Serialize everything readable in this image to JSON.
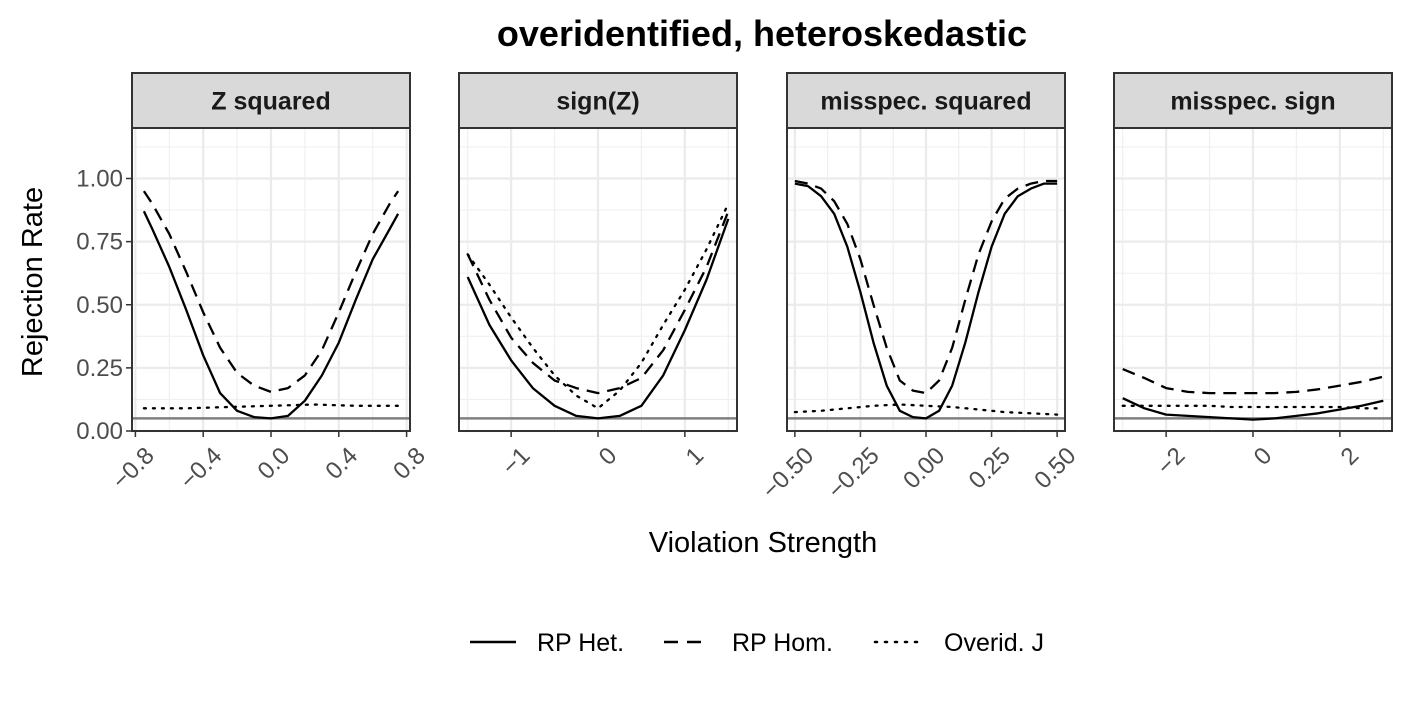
{
  "chart_data": {
    "type": "line",
    "title": "overidentified, heteroskedastic",
    "xlabel": "Violation Strength",
    "ylabel": "Rejection Rate",
    "ylim": [
      0,
      1.2
    ],
    "y_ticks": [
      0,
      0.25,
      0.5,
      0.75,
      1.0
    ],
    "y_tick_labels": [
      "0.00",
      "0.25",
      "0.50",
      "0.75",
      "1.00"
    ],
    "reference_line": 0.05,
    "legend_position": "bottom",
    "legend": [
      {
        "name": "RP Het.",
        "style": "solid"
      },
      {
        "name": "RP Hom.",
        "style": "dashed"
      },
      {
        "name": "Overid. J",
        "style": "dotted"
      }
    ],
    "panels": [
      {
        "title": "Z squared",
        "xlim": [
          -0.82,
          0.82
        ],
        "x_ticks": [
          -0.8,
          -0.4,
          0.0,
          0.4,
          0.8
        ],
        "x_tick_labels": [
          "−0.8",
          "−0.4",
          "0.0",
          "0.4",
          "0.8"
        ],
        "series": [
          {
            "name": "RP Het.",
            "x": [
              -0.75,
              -0.7,
              -0.6,
              -0.5,
              -0.4,
              -0.3,
              -0.2,
              -0.1,
              0.0,
              0.1,
              0.2,
              0.3,
              0.4,
              0.5,
              0.6,
              0.7,
              0.75
            ],
            "y": [
              0.87,
              0.8,
              0.65,
              0.48,
              0.3,
              0.15,
              0.08,
              0.055,
              0.05,
              0.06,
              0.12,
              0.22,
              0.35,
              0.52,
              0.68,
              0.8,
              0.86
            ]
          },
          {
            "name": "RP Hom.",
            "x": [
              -0.75,
              -0.7,
              -0.6,
              -0.5,
              -0.4,
              -0.3,
              -0.2,
              -0.1,
              0.0,
              0.1,
              0.2,
              0.3,
              0.4,
              0.5,
              0.6,
              0.7,
              0.75
            ],
            "y": [
              0.95,
              0.9,
              0.78,
              0.63,
              0.47,
              0.33,
              0.23,
              0.18,
              0.155,
              0.17,
              0.22,
              0.32,
              0.47,
              0.63,
              0.78,
              0.9,
              0.95
            ]
          },
          {
            "name": "Overid. J",
            "x": [
              -0.75,
              -0.5,
              -0.25,
              0.0,
              0.25,
              0.5,
              0.75
            ],
            "y": [
              0.09,
              0.09,
              0.095,
              0.1,
              0.105,
              0.1,
              0.1
            ]
          }
        ]
      },
      {
        "title": "sign(Z)",
        "xlim": [
          -1.6,
          1.6
        ],
        "x_ticks": [
          -1,
          0,
          1
        ],
        "x_tick_labels": [
          "−1",
          "0",
          "1"
        ],
        "series": [
          {
            "name": "RP Het.",
            "x": [
              -1.5,
              -1.25,
              -1.0,
              -0.75,
              -0.5,
              -0.25,
              0.0,
              0.25,
              0.5,
              0.75,
              1.0,
              1.25,
              1.5
            ],
            "y": [
              0.61,
              0.42,
              0.28,
              0.17,
              0.1,
              0.06,
              0.05,
              0.06,
              0.1,
              0.22,
              0.4,
              0.6,
              0.84
            ]
          },
          {
            "name": "RP Hom.",
            "x": [
              -1.5,
              -1.25,
              -1.0,
              -0.75,
              -0.5,
              -0.25,
              0.0,
              0.25,
              0.5,
              0.75,
              1.0,
              1.25,
              1.5
            ],
            "y": [
              0.7,
              0.52,
              0.37,
              0.27,
              0.2,
              0.17,
              0.15,
              0.17,
              0.21,
              0.32,
              0.48,
              0.65,
              0.87
            ]
          },
          {
            "name": "Overid. J",
            "x": [
              -1.5,
              -1.25,
              -1.0,
              -0.75,
              -0.5,
              -0.25,
              0.0,
              0.25,
              0.5,
              0.75,
              1.0,
              1.25,
              1.5
            ],
            "y": [
              0.7,
              0.58,
              0.45,
              0.33,
              0.22,
              0.14,
              0.09,
              0.16,
              0.27,
              0.42,
              0.56,
              0.72,
              0.9
            ]
          }
        ]
      },
      {
        "title": "misspec. squared",
        "xlim": [
          -0.53,
          0.53
        ],
        "x_ticks": [
          -0.5,
          -0.25,
          0.0,
          0.25,
          0.5
        ],
        "x_tick_labels": [
          "−0.50",
          "−0.25",
          "0.00",
          "0.25",
          "0.50"
        ],
        "series": [
          {
            "name": "RP Het.",
            "x": [
              -0.5,
              -0.45,
              -0.4,
              -0.35,
              -0.3,
              -0.25,
              -0.2,
              -0.15,
              -0.1,
              -0.05,
              0.0,
              0.05,
              0.1,
              0.15,
              0.2,
              0.25,
              0.3,
              0.35,
              0.4,
              0.45,
              0.5
            ],
            "y": [
              0.98,
              0.97,
              0.93,
              0.86,
              0.73,
              0.55,
              0.35,
              0.18,
              0.08,
              0.055,
              0.05,
              0.08,
              0.18,
              0.35,
              0.55,
              0.73,
              0.86,
              0.93,
              0.96,
              0.98,
              0.98
            ]
          },
          {
            "name": "RP Hom.",
            "x": [
              -0.5,
              -0.45,
              -0.4,
              -0.35,
              -0.3,
              -0.25,
              -0.2,
              -0.15,
              -0.1,
              -0.05,
              0.0,
              0.05,
              0.1,
              0.15,
              0.2,
              0.25,
              0.3,
              0.35,
              0.4,
              0.45,
              0.5
            ],
            "y": [
              0.99,
              0.98,
              0.96,
              0.91,
              0.82,
              0.68,
              0.5,
              0.33,
              0.2,
              0.16,
              0.15,
              0.2,
              0.33,
              0.52,
              0.7,
              0.83,
              0.92,
              0.96,
              0.98,
              0.99,
              0.99
            ]
          },
          {
            "name": "Overid. J",
            "x": [
              -0.5,
              -0.4,
              -0.3,
              -0.2,
              -0.1,
              0.0,
              0.1,
              0.2,
              0.3,
              0.4,
              0.5
            ],
            "y": [
              0.075,
              0.08,
              0.09,
              0.1,
              0.105,
              0.1,
              0.095,
              0.085,
              0.075,
              0.07,
              0.065
            ]
          }
        ]
      },
      {
        "title": "misspec. sign",
        "xlim": [
          -3.2,
          3.2
        ],
        "x_ticks": [
          -2,
          0,
          2
        ],
        "x_tick_labels": [
          "−2",
          "0",
          "2"
        ],
        "series": [
          {
            "name": "RP Het.",
            "x": [
              -3.0,
              -2.5,
              -2.0,
              -1.5,
              -1.0,
              -0.5,
              0.0,
              0.5,
              1.0,
              1.5,
              2.0,
              2.5,
              3.0
            ],
            "y": [
              0.13,
              0.09,
              0.065,
              0.06,
              0.055,
              0.05,
              0.045,
              0.05,
              0.06,
              0.07,
              0.085,
              0.1,
              0.12
            ]
          },
          {
            "name": "RP Hom.",
            "x": [
              -3.0,
              -2.5,
              -2.0,
              -1.5,
              -1.0,
              -0.5,
              0.0,
              0.5,
              1.0,
              1.5,
              2.0,
              2.5,
              3.0
            ],
            "y": [
              0.245,
              0.21,
              0.17,
              0.155,
              0.15,
              0.15,
              0.15,
              0.15,
              0.155,
              0.165,
              0.18,
              0.195,
              0.215
            ]
          },
          {
            "name": "Overid. J",
            "x": [
              -3.0,
              -2.5,
              -2.0,
              -1.5,
              -1.0,
              -0.5,
              0.0,
              0.5,
              1.0,
              1.5,
              2.0,
              2.5,
              3.0
            ],
            "y": [
              0.1,
              0.1,
              0.1,
              0.1,
              0.1,
              0.095,
              0.095,
              0.095,
              0.095,
              0.095,
              0.095,
              0.09,
              0.09
            ]
          }
        ]
      }
    ]
  }
}
